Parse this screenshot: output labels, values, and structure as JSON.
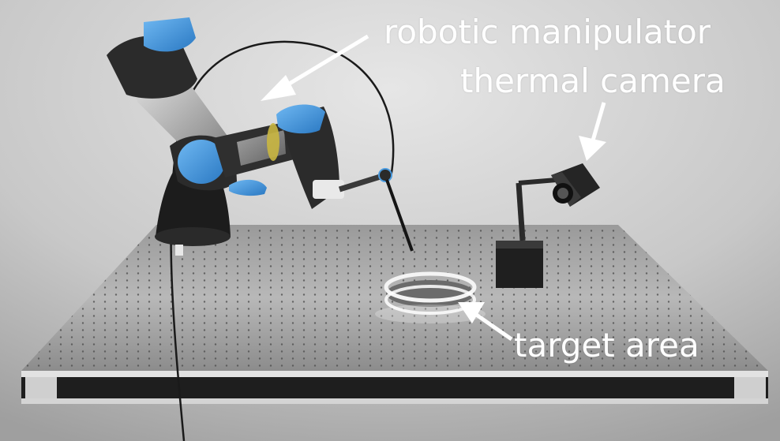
{
  "labels": {
    "robotic_manipulator": "robotic manipulator",
    "thermal_camera": "thermal camera",
    "target_area": "target area"
  },
  "colors": {
    "robot_accent": "#3a8fd8",
    "robot_metal": "#c8c8c8",
    "robot_dark": "#2b2b2b",
    "table_top": "#a9a9a9",
    "background": "#c4c4c4",
    "annotation": "#ffffff"
  }
}
